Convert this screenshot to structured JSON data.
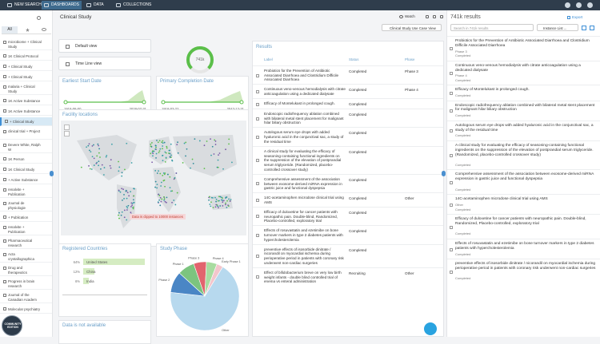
{
  "nav": {
    "items": [
      "NEW SEARCH",
      "DASHBOARDS",
      "DATA",
      "COLLECTIONS"
    ]
  },
  "sidebar": {
    "tab": "All",
    "items": [
      "microbiome + Clinical Study",
      "1K Clinical Protocol",
      "+ Clinical Study",
      "+ Clinical Study",
      "malaria + Clinical Study",
      "1K Active Substance",
      "1K Active Substance",
      "+ Clinical Study",
      "clinical trial + Project",
      "Devere White, Ralph W",
      "1K Person",
      "1K Clinical Study",
      "+ Active Substance",
      "renalvite + Publication",
      "Journal de physiologie",
      "+ Publication",
      "renalvite + Publication",
      "Pharmaceutical research",
      "Acta crystallographica",
      "Drug and therapeutics",
      "Progress in brain research",
      "Journal of the Canadian Academ",
      "Molecular psychiatry"
    ],
    "badge": "COMMUNITY EDITION"
  },
  "header": {
    "title": "Clinical Study",
    "watch": "Watch",
    "view": "Clinical Study Use Case View"
  },
  "views": [
    "Default view",
    "Time Line view"
  ],
  "gauge": {
    "value": "741k"
  },
  "dates": [
    {
      "title": "Earliest Start Date",
      "from": "1916-06-00",
      "to": "2028-07-31"
    },
    {
      "title": "Primary Completion Date",
      "from": "1916-03-22",
      "to": "2042-12-31"
    }
  ],
  "map": {
    "title": "Facility locations",
    "note": "Data is clipped to 10000 instances"
  },
  "chart_data": [
    {
      "type": "bar",
      "title": "Registered Countries",
      "categories": [
        "United States",
        "China",
        "India"
      ],
      "values": [
        64,
        12,
        6
      ],
      "value_labels": [
        "64%",
        "12%",
        "6%"
      ],
      "color": "#d5ecc2"
    },
    {
      "type": "pie",
      "title": "Study Phase",
      "categories": [
        "Other",
        "Phase 2",
        "Phase 1",
        "Phase 3",
        "Phase 4",
        "Early Phase 1"
      ],
      "values": [
        68,
        10,
        8,
        6,
        5,
        3
      ],
      "colors": [
        "#b7d9ee",
        "#4a86c5",
        "#7cc47f",
        "#e2646e",
        "#a8dca0",
        "#f3c6cc"
      ]
    }
  ],
  "unavailable": {
    "title": "Data is not available"
  },
  "results": {
    "title": "Results",
    "columns": [
      "Label",
      "Status",
      "Phase"
    ],
    "rows": [
      {
        "label": "Probiotics for the Prevention of Antibiotic Associated Diarrhoea and Clostridium Difficile Associated Diarrhoea",
        "status": "Completed",
        "phase": "Phase 3"
      },
      {
        "label": "Continuous veno-venous hemodialysis with citrate anticoagulation using a dedicated dialysate",
        "status": "Completed",
        "phase": "Phase 4"
      },
      {
        "label": "Efficacy of Montelukast in prolonged cough.",
        "status": "Completed"
      },
      {
        "label": "Endoscopic radiofrequency ablation combined with bilateral metal stent placement for malignant hilar biliary obstruction",
        "status": "Completed"
      },
      {
        "label": "Autologous serum eye drops with added hyaluronic acid in the conjunctival sac, a study of the residual time",
        "status": "Completed"
      },
      {
        "label": "A clinical study for evaluating the efficacy of seasoning-containing functional ingredients on the suppression of the elevation of postprandial serum triglyceride. (Randomized, placebo-controlled crossover study)",
        "status": "Completed"
      },
      {
        "label": "Comprehensive assessment of the association between exosome-derived miRNA expression in gastric juice and functional dyspepsia",
        "status": "Completed"
      },
      {
        "label": "14C-acetaminophen microdose clinical trial using AMS",
        "status": "Completed",
        "phase": "Other"
      },
      {
        "label": "Efficacy of duloxetine for cancer patients with neuropathic pain. Double-blind, Randomized, Placebo-controlled, exploratory trial",
        "status": "Completed"
      },
      {
        "label": "Effects of rosuvastatin and ezetimibe on bone turnover markers in type 2 diabetes patients with hypercholesterolemia",
        "status": "Completed"
      },
      {
        "label": "preventive effects of isosorbide dinitrate / nicorandil on myocardial ischemia during perioperative period in patients with coronary risk underwent non-cardiac surgeries",
        "status": "Completed"
      },
      {
        "label": "Effect of bifidobacterium breve on very low birth weight infants - double blind controlled trial of enema vs enteral administration",
        "status": "Recruiting",
        "phase": "Other"
      }
    ]
  },
  "list": {
    "count": "741k results",
    "export": "Export",
    "search": "Search in 741k results",
    "view": "Instance List ...",
    "items": [
      {
        "title": "Probiotics for the Prevention of Antibiotic Associated Diarrhoea and Clostridium Difficile Associated Diarrhoea",
        "lines": [
          "Phase 3",
          "Completed"
        ]
      },
      {
        "title": "Continuous veno-venous hemodialysis with citrate anticoagulation using a dedicated dialysate",
        "lines": [
          "Phase 4",
          "Completed"
        ]
      },
      {
        "title": "Efficacy of Montelukast in prolonged cough.",
        "lines": [
          "Completed"
        ]
      },
      {
        "title": "Endoscopic radiofrequency ablation combined with bilateral metal stent placement for malignant hilar biliary obstruction",
        "lines": [
          "Completed"
        ]
      },
      {
        "title": "Autologous serum eye drops with added hyaluronic acid in the conjunctival sac, a study of the residual time",
        "lines": [
          "Completed"
        ]
      },
      {
        "title": "A clinical study for evaluating the efficacy of seasoning-containing functional ingredients on the suppression of the elevation of postprandial serum triglyceride. (Randomized, placebo-controlled crossover study)",
        "lines": [
          "Completed"
        ]
      },
      {
        "title": "Comprehensive assessment of the association between exosome-derived miRNA expression in gastric juice and functional dyspepsia",
        "lines": [
          "Completed"
        ]
      },
      {
        "title": "14C-acetaminophen microdose clinical trial using AMS",
        "lines": [
          "Other",
          "Completed"
        ]
      },
      {
        "title": "Efficacy of duloxetine for cancer patients with neuropathic pain. Double-blind, Randomized, Placebo-controlled, exploratory trial",
        "lines": [
          "Completed"
        ]
      },
      {
        "title": "Effects of rosuvastatin and ezetimibe on bone turnover markers in type 2 diabetes patients with hypercholesterolemia",
        "lines": [
          "Completed"
        ]
      },
      {
        "title": "preventive effects of isosorbide dinitrate / nicorandil on myocardial ischemia during perioperative period in patients with coronary risk underwent non-cardiac surgeries",
        "lines": [
          "Completed"
        ]
      }
    ]
  }
}
